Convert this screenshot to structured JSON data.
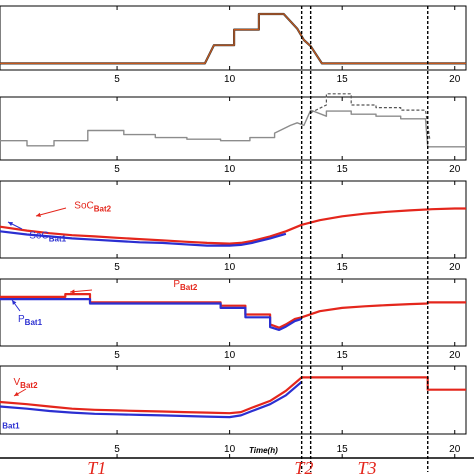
{
  "chart_data": {
    "type": "line",
    "x_axis": {
      "label": "Time(h)",
      "ticks": [
        "5",
        "10",
        "15",
        "20"
      ],
      "xlim": [
        -0.2,
        20.5
      ]
    },
    "event_lines": [
      {
        "x": 13.2,
        "style": "dashed"
      },
      {
        "x": 13.6,
        "style": "dashed"
      },
      {
        "x": 18.8,
        "style": "dashed"
      }
    ],
    "periods": [
      {
        "label": "T1",
        "x": 4.1
      },
      {
        "label": "T2",
        "x": 13.3
      },
      {
        "label": "T3",
        "x": 16.1
      }
    ],
    "panels": [
      {
        "id": "panel-1",
        "ylim": [
          0,
          1
        ],
        "series": [
          {
            "name": "",
            "color": "#3b3b3b",
            "width": 2.2,
            "dash": "",
            "points": [
              [
                -0.2,
                0.05
              ],
              [
                8.9,
                0.05
              ],
              [
                9.3,
                0.4
              ],
              [
                10.2,
                0.4
              ],
              [
                10.2,
                0.7
              ],
              [
                11.3,
                0.7
              ],
              [
                11.3,
                1.0
              ],
              [
                12.4,
                1.0
              ],
              [
                13.0,
                0.72
              ],
              [
                13.3,
                0.5
              ],
              [
                13.6,
                0.38
              ],
              [
                14.1,
                0.05
              ],
              [
                20.5,
                0.05
              ]
            ]
          },
          {
            "name": "",
            "color": "#c4581c",
            "width": 1.2,
            "dash": "",
            "points": [
              [
                -0.2,
                0.05
              ],
              [
                8.9,
                0.05
              ],
              [
                9.3,
                0.4
              ],
              [
                10.2,
                0.4
              ],
              [
                10.2,
                0.7
              ],
              [
                11.3,
                0.7
              ],
              [
                11.3,
                1.0
              ],
              [
                12.4,
                1.0
              ],
              [
                13.0,
                0.72
              ],
              [
                13.3,
                0.5
              ],
              [
                13.6,
                0.38
              ],
              [
                14.1,
                0.05
              ],
              [
                20.5,
                0.05
              ]
            ]
          }
        ],
        "x_tick_labels": true,
        "labels": []
      },
      {
        "id": "panel-2",
        "ylim": [
          0,
          1
        ],
        "series": [
          {
            "name": "",
            "color": "#555555",
            "width": 1.2,
            "dash": "3,2",
            "points": [
              [
                13.6,
                0.85
              ],
              [
                14.3,
                1.0
              ],
              [
                14.3,
                1.22
              ],
              [
                15.4,
                1.22
              ],
              [
                15.4,
                1.0
              ],
              [
                16.5,
                1.0
              ],
              [
                16.5,
                0.95
              ],
              [
                17.6,
                0.95
              ],
              [
                17.6,
                0.9
              ],
              [
                18.7,
                0.9
              ],
              [
                18.9,
                0.3
              ]
            ]
          },
          {
            "name": "",
            "color": "#8c8c8c",
            "width": 1.4,
            "dash": "",
            "points": [
              [
                -0.2,
                0.3
              ],
              [
                1.0,
                0.3
              ],
              [
                1.0,
                0.2
              ],
              [
                2.2,
                0.2
              ],
              [
                2.2,
                0.3
              ],
              [
                3.7,
                0.3
              ],
              [
                3.7,
                0.5
              ],
              [
                5.3,
                0.5
              ],
              [
                5.3,
                0.42
              ],
              [
                6.7,
                0.42
              ],
              [
                6.7,
                0.36
              ],
              [
                8.1,
                0.36
              ],
              [
                8.1,
                0.33
              ],
              [
                9.6,
                0.33
              ],
              [
                9.6,
                0.3
              ],
              [
                10.9,
                0.3
              ],
              [
                10.9,
                0.36
              ],
              [
                12.0,
                0.36
              ],
              [
                12.0,
                0.45
              ],
              [
                12.7,
                0.6
              ],
              [
                13.0,
                0.65
              ],
              [
                13.3,
                0.6
              ],
              [
                13.6,
                0.9
              ],
              [
                14.3,
                0.78
              ],
              [
                14.3,
                0.88
              ],
              [
                15.4,
                0.88
              ],
              [
                15.4,
                0.82
              ],
              [
                16.5,
                0.82
              ],
              [
                16.5,
                0.78
              ],
              [
                17.6,
                0.78
              ],
              [
                17.6,
                0.73
              ],
              [
                18.7,
                0.73
              ],
              [
                18.8,
                0.18
              ],
              [
                20.5,
                0.18
              ]
            ]
          }
        ],
        "x_tick_labels": true,
        "labels": []
      },
      {
        "id": "panel-3",
        "ylim": [
          0,
          1
        ],
        "series": [
          {
            "name": "SoC Bat2",
            "color": "#e4261c",
            "width": 2.2,
            "dash": "",
            "points": [
              [
                -0.2,
                0.42
              ],
              [
                1,
                0.36
              ],
              [
                2,
                0.32
              ],
              [
                3,
                0.29
              ],
              [
                4,
                0.27
              ],
              [
                5,
                0.25
              ],
              [
                6,
                0.23
              ],
              [
                7,
                0.21
              ],
              [
                8,
                0.19
              ],
              [
                9,
                0.17
              ],
              [
                10,
                0.16
              ],
              [
                10.5,
                0.17
              ],
              [
                11,
                0.2
              ],
              [
                11.8,
                0.27
              ],
              [
                12.5,
                0.35
              ],
              [
                13.2,
                0.45
              ],
              [
                14,
                0.52
              ],
              [
                15,
                0.58
              ],
              [
                16,
                0.62
              ],
              [
                17,
                0.65
              ],
              [
                18,
                0.67
              ],
              [
                19,
                0.69
              ],
              [
                20,
                0.7
              ],
              [
                20.5,
                0.7
              ]
            ]
          },
          {
            "name": "SoC Bat1",
            "color": "#2b2fd1",
            "width": 2.2,
            "dash": "",
            "points": [
              [
                -0.2,
                0.35
              ],
              [
                1,
                0.3
              ],
              [
                2,
                0.27
              ],
              [
                3,
                0.24
              ],
              [
                4,
                0.22
              ],
              [
                5,
                0.2
              ],
              [
                6,
                0.18
              ],
              [
                7,
                0.17
              ],
              [
                8,
                0.15
              ],
              [
                9,
                0.13
              ],
              [
                10,
                0.13
              ],
              [
                10.5,
                0.14
              ],
              [
                11,
                0.17
              ],
              [
                11.8,
                0.24
              ],
              [
                12.5,
                0.31
              ]
            ]
          }
        ],
        "x_tick_labels": true,
        "labels": [
          {
            "main": "SoC",
            "sub": "Bat2",
            "color": "#e4261c",
            "x": 3.1,
            "y": 0.7
          },
          {
            "main": "SoC",
            "sub": "Bat1",
            "color": "#2b2fd1",
            "x": 1.1,
            "y": 0.24
          }
        ]
      },
      {
        "id": "panel-4",
        "ylim": [
          0,
          1
        ],
        "series": [
          {
            "name": "P Bat2",
            "color": "#e4261c",
            "width": 2.2,
            "dash": "",
            "points": [
              [
                -0.2,
                0.82
              ],
              [
                2.7,
                0.82
              ],
              [
                2.7,
                0.87
              ],
              [
                3.8,
                0.87
              ],
              [
                3.8,
                0.72
              ],
              [
                9.6,
                0.72
              ],
              [
                9.6,
                0.66
              ],
              [
                10.7,
                0.66
              ],
              [
                10.7,
                0.5
              ],
              [
                11.8,
                0.5
              ],
              [
                11.8,
                0.32
              ],
              [
                12.2,
                0.26
              ],
              [
                12.5,
                0.32
              ],
              [
                12.9,
                0.42
              ],
              [
                13.2,
                0.45
              ],
              [
                14,
                0.56
              ],
              [
                15,
                0.62
              ],
              [
                16,
                0.65
              ],
              [
                17,
                0.67
              ],
              [
                18,
                0.69
              ],
              [
                18.8,
                0.7
              ],
              [
                18.8,
                0.72
              ],
              [
                20.5,
                0.72
              ]
            ]
          },
          {
            "name": "P Bat1",
            "color": "#2b2fd1",
            "width": 2.2,
            "dash": "",
            "points": [
              [
                -0.2,
                0.78
              ],
              [
                3.8,
                0.78
              ],
              [
                3.8,
                0.7
              ],
              [
                9.6,
                0.7
              ],
              [
                9.6,
                0.62
              ],
              [
                10.7,
                0.62
              ],
              [
                10.7,
                0.45
              ],
              [
                11.8,
                0.45
              ],
              [
                11.8,
                0.27
              ],
              [
                12.2,
                0.22
              ],
              [
                12.5,
                0.28
              ],
              [
                12.9,
                0.38
              ],
              [
                13.2,
                0.42
              ]
            ]
          }
        ],
        "x_tick_labels": true,
        "labels": [
          {
            "main": "P",
            "sub": "Bat2",
            "color": "#e4261c",
            "x": 7.5,
            "y": 1.0
          },
          {
            "main": "P",
            "sub": "Bat1",
            "color": "#2b2fd1",
            "x": 0.6,
            "y": 0.36
          }
        ]
      },
      {
        "id": "panel-5",
        "ylim": [
          0,
          1
        ],
        "series": [
          {
            "name": "V Bat2",
            "color": "#e4261c",
            "width": 2.2,
            "dash": "",
            "points": [
              [
                -0.2,
                0.5
              ],
              [
                1,
                0.46
              ],
              [
                2,
                0.42
              ],
              [
                3,
                0.38
              ],
              [
                4,
                0.36
              ],
              [
                5,
                0.35
              ],
              [
                6,
                0.34
              ],
              [
                7,
                0.33
              ],
              [
                8,
                0.32
              ],
              [
                9,
                0.31
              ],
              [
                10,
                0.3
              ],
              [
                10.5,
                0.32
              ],
              [
                11,
                0.4
              ],
              [
                11.8,
                0.52
              ],
              [
                12.5,
                0.7
              ],
              [
                13.2,
                0.94
              ],
              [
                14,
                0.94
              ],
              [
                18.8,
                0.94
              ],
              [
                18.8,
                0.72
              ],
              [
                20.5,
                0.72
              ]
            ]
          },
          {
            "name": "V Bat1",
            "color": "#2b2fd1",
            "width": 2.2,
            "dash": "",
            "points": [
              [
                -0.2,
                0.42
              ],
              [
                1,
                0.38
              ],
              [
                2,
                0.34
              ],
              [
                3,
                0.31
              ],
              [
                4,
                0.29
              ],
              [
                5,
                0.28
              ],
              [
                6,
                0.27
              ],
              [
                7,
                0.26
              ],
              [
                8,
                0.25
              ],
              [
                9,
                0.24
              ],
              [
                10,
                0.23
              ],
              [
                10.5,
                0.26
              ],
              [
                11,
                0.34
              ],
              [
                11.8,
                0.46
              ],
              [
                12.5,
                0.62
              ],
              [
                13.2,
                0.86
              ]
            ]
          }
        ],
        "x_tick_labels": false,
        "labels": [
          {
            "main": "V",
            "sub": "Bat2",
            "color": "#e4261c",
            "x": 0.4,
            "y": 0.8
          },
          {
            "main": "",
            "sub": "Bat1",
            "color": "#2b2fd1",
            "x": -0.1,
            "y": 0.08
          }
        ]
      }
    ]
  }
}
